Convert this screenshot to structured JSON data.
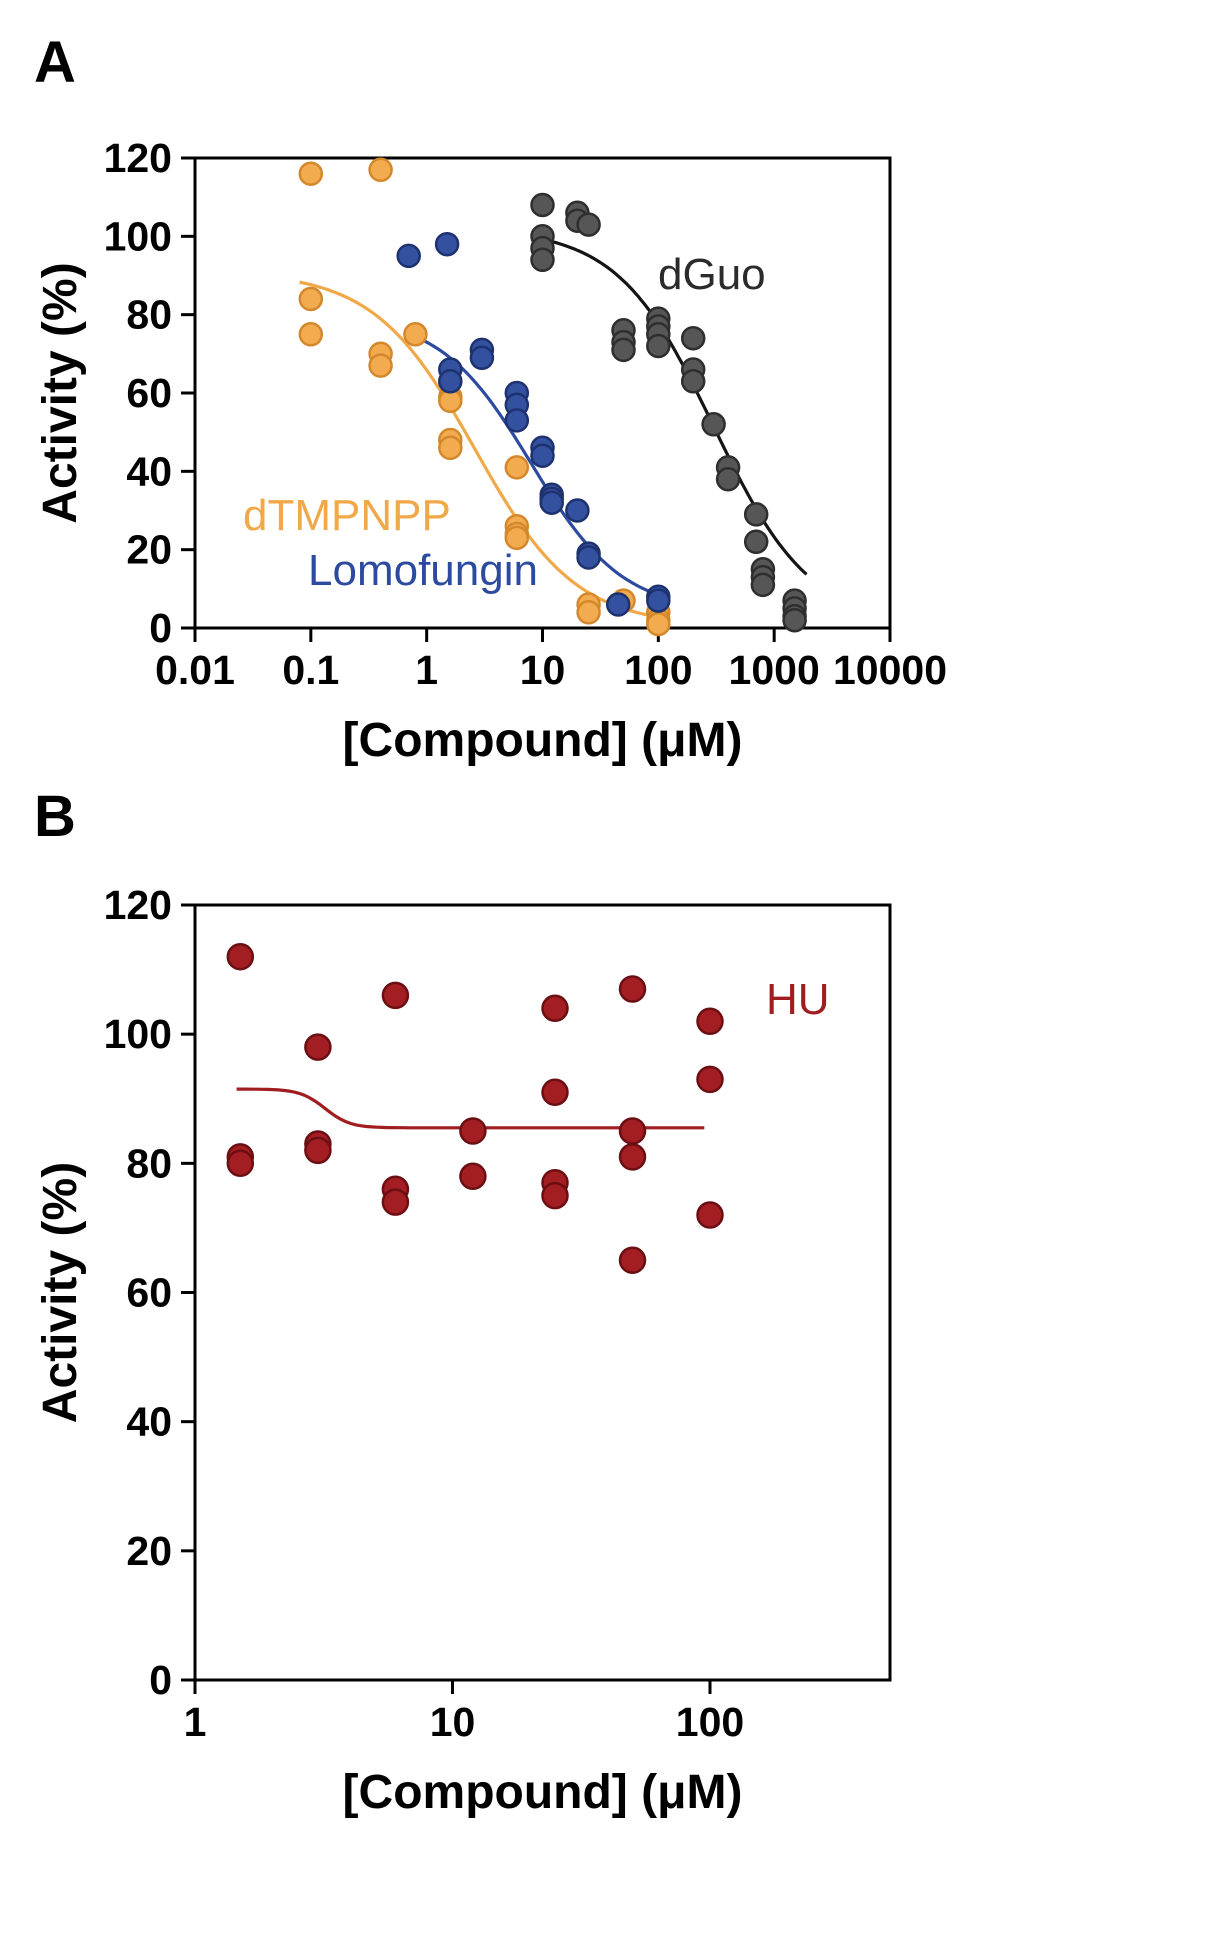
{
  "figure": {
    "panel_a_label": "A",
    "panel_b_label": "B"
  },
  "chart_data": [
    {
      "id": "panel-a",
      "type": "scatter",
      "xlabel": "[Compound] (μM)",
      "ylabel": "Activity (%)",
      "xscale": "log",
      "xlim": [
        0.01,
        10000
      ],
      "ylim": [
        0,
        120
      ],
      "xticks": [
        0.01,
        0.1,
        1,
        10,
        100,
        1000,
        10000
      ],
      "xtick_labels": [
        "0.01",
        "0.1",
        "1",
        "10",
        "100",
        "1000",
        "10000"
      ],
      "yticks": [
        0,
        20,
        40,
        60,
        80,
        100,
        120
      ],
      "grid": false,
      "series": [
        {
          "name": "dTMPNPP",
          "color": "#F2AB4F",
          "edge": "#D4882B",
          "curve_color": "#F0A848",
          "points": [
            [
              0.1,
              116
            ],
            [
              0.1,
              84
            ],
            [
              0.1,
              75
            ],
            [
              0.4,
              117
            ],
            [
              0.4,
              70
            ],
            [
              0.4,
              67
            ],
            [
              0.8,
              75
            ],
            [
              1.6,
              63
            ],
            [
              1.6,
              59
            ],
            [
              1.6,
              58
            ],
            [
              1.6,
              48
            ],
            [
              1.6,
              46
            ],
            [
              6,
              41
            ],
            [
              6,
              26
            ],
            [
              6,
              24
            ],
            [
              6,
              23
            ],
            [
              25,
              6
            ],
            [
              25,
              4
            ],
            [
              50,
              7
            ],
            [
              100,
              4
            ],
            [
              100,
              2
            ],
            [
              100,
              1
            ]
          ],
          "fit": {
            "top": 91,
            "bottom": 0.5,
            "ic50": 2.6,
            "hill": 1.0,
            "xmin": 0.08,
            "xmax": 110
          }
        },
        {
          "name": "Lomofungin",
          "color": "#33519F",
          "edge": "#1E3270",
          "curve_color": "#2C4AA0",
          "points": [
            [
              0.7,
              95
            ],
            [
              1.5,
              98
            ],
            [
              1.6,
              66
            ],
            [
              1.6,
              63
            ],
            [
              3,
              71
            ],
            [
              3,
              69
            ],
            [
              6,
              60
            ],
            [
              6,
              57
            ],
            [
              6,
              53
            ],
            [
              10,
              46
            ],
            [
              10,
              44
            ],
            [
              12,
              34
            ],
            [
              12,
              33
            ],
            [
              12,
              32
            ],
            [
              20,
              30
            ],
            [
              25,
              19
            ],
            [
              25,
              18
            ],
            [
              45,
              6
            ],
            [
              100,
              8
            ],
            [
              100,
              7
            ]
          ],
          "fit": {
            "top": 80,
            "bottom": 4,
            "ic50": 8,
            "hill": 1.1,
            "xmin": 0.75,
            "xmax": 110
          }
        },
        {
          "name": "dGuo",
          "color": "#565656",
          "edge": "#2E2E2E",
          "curve_color": "#141414",
          "points": [
            [
              10,
              108
            ],
            [
              10,
              100
            ],
            [
              10,
              97
            ],
            [
              10,
              94
            ],
            [
              20,
              106
            ],
            [
              20,
              104
            ],
            [
              25,
              103
            ],
            [
              50,
              76
            ],
            [
              50,
              73
            ],
            [
              50,
              71
            ],
            [
              100,
              79
            ],
            [
              100,
              77
            ],
            [
              100,
              75
            ],
            [
              100,
              72
            ],
            [
              200,
              74
            ],
            [
              200,
              66
            ],
            [
              200,
              63
            ],
            [
              300,
              52
            ],
            [
              400,
              41
            ],
            [
              400,
              38
            ],
            [
              700,
              29
            ],
            [
              700,
              22
            ],
            [
              800,
              15
            ],
            [
              800,
              13
            ],
            [
              800,
              11
            ],
            [
              1500,
              7
            ],
            [
              1500,
              5
            ],
            [
              1500,
              3
            ],
            [
              1500,
              2
            ]
          ],
          "fit": {
            "top": 102,
            "bottom": 1,
            "ic50": 300,
            "hill": 1.05,
            "xmin": 8,
            "xmax": 1900
          }
        }
      ],
      "annotations": [
        {
          "text": "dGuo",
          "color": "#2B2B2B"
        },
        {
          "text": "dTMPNPP",
          "color": "#F0A848"
        },
        {
          "text": "Lomofungin",
          "color": "#2C4AA0"
        }
      ]
    },
    {
      "id": "panel-b",
      "type": "scatter",
      "xlabel": "[Compound] (μM)",
      "ylabel": "Activity (%)",
      "xscale": "log",
      "xlim": [
        1,
        500
      ],
      "ylim": [
        0,
        120
      ],
      "xticks": [
        1,
        10,
        100
      ],
      "xtick_labels": [
        "1",
        "10",
        "100"
      ],
      "yticks": [
        0,
        20,
        40,
        60,
        80,
        100,
        120
      ],
      "grid": false,
      "series": [
        {
          "name": "HU",
          "color": "#A31E23",
          "edge": "#6B0F13",
          "curve_color": "#A01D20",
          "points": [
            [
              1.5,
              112
            ],
            [
              1.5,
              81
            ],
            [
              1.5,
              80
            ],
            [
              3,
              98
            ],
            [
              3,
              83
            ],
            [
              3,
              82
            ],
            [
              6,
              106
            ],
            [
              6,
              76
            ],
            [
              6,
              74
            ],
            [
              12,
              85
            ],
            [
              12,
              78
            ],
            [
              25,
              104
            ],
            [
              25,
              91
            ],
            [
              25,
              77
            ],
            [
              25,
              75
            ],
            [
              50,
              107
            ],
            [
              50,
              85
            ],
            [
              50,
              81
            ],
            [
              50,
              65
            ],
            [
              100,
              102
            ],
            [
              100,
              93
            ],
            [
              100,
              72
            ]
          ],
          "fit_line": {
            "y_left": 91.5,
            "y_right": 85.5,
            "x_step": 3.2,
            "steepness": 9,
            "xmin": 1.45,
            "xmax": 95
          }
        }
      ],
      "annotations": [
        {
          "text": "HU",
          "color": "#A01D20"
        }
      ]
    }
  ]
}
